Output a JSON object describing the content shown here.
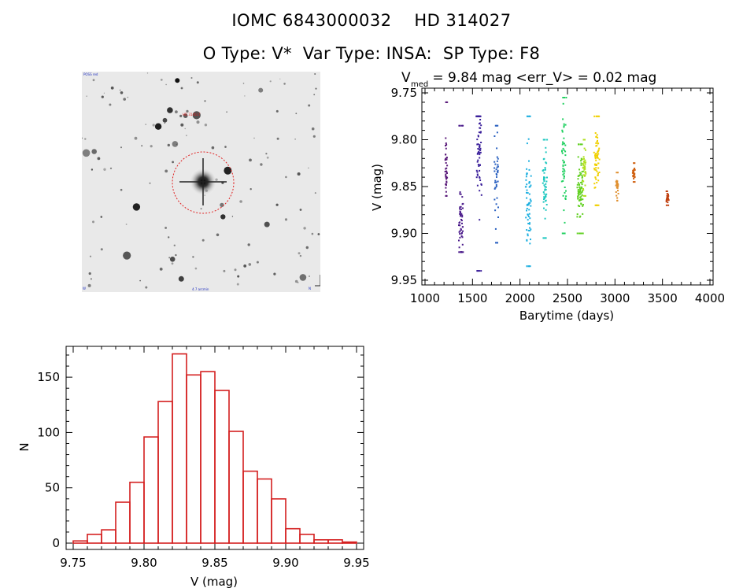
{
  "header": {
    "line1": "IOMC 6843000032    HD 314027",
    "line2": "O Type: V*  Var Type: INSA:  SP Type: F8"
  },
  "colors": {
    "histogram": "#d42020",
    "aperture": "#e02020",
    "lc_palette": [
      "#5a1a7a",
      "#3a1f8a",
      "#2030c0",
      "#2a60c0",
      "#20b0e0",
      "#20c8c0",
      "#20d060",
      "#60d020",
      "#a0e020",
      "#f0d000",
      "#e09030",
      "#d06010",
      "#c04010"
    ]
  },
  "star_image": {
    "label_top_left": "POSS red",
    "label_target": "HD 314027",
    "label_bottom_left": "W",
    "label_bottom_center": "4.7 arcmin",
    "label_bottom_right": "N"
  },
  "chart_data": [
    {
      "type": "scatter",
      "title_prefix": "V",
      "title_sub": "med",
      "title_rest": " = 9.84 mag <err_V> = 0.02 mag",
      "xlabel": "Barytime (days)",
      "ylabel": "V (mag)",
      "xlim": [
        1000,
        4000
      ],
      "ylim": [
        9.95,
        9.75
      ],
      "y_inverted": true,
      "xticks": [
        1000,
        1500,
        2000,
        2500,
        3000,
        3500,
        4000
      ],
      "yticks": [
        "9.75",
        "9.80",
        "9.85",
        "9.90",
        "9.95"
      ],
      "series": [
        {
          "name": "s1",
          "color": "#5a1a7a",
          "x": [
            1210,
            1215,
            1220
          ],
          "ymin": 9.76,
          "ymax": 9.86,
          "center": 9.83
        },
        {
          "name": "s2",
          "color": "#4a1a8a",
          "x": [
            1355,
            1365,
            1375,
            1385
          ],
          "ymin": 9.785,
          "ymax": 9.92,
          "center": 9.89
        },
        {
          "name": "s3",
          "color": "#3a1f9a",
          "x": [
            1540,
            1550,
            1560,
            1570,
            1580
          ],
          "ymin": 9.775,
          "ymax": 9.94,
          "center": 9.81
        },
        {
          "name": "s4",
          "color": "#2a60c0",
          "x": [
            1730,
            1745,
            1755
          ],
          "ymin": 9.785,
          "ymax": 9.91,
          "center": 9.84
        },
        {
          "name": "s5",
          "color": "#20b0e0",
          "x": [
            2060,
            2070,
            2080,
            2090,
            2100
          ],
          "ymin": 9.775,
          "ymax": 9.935,
          "center": 9.865
        },
        {
          "name": "s6",
          "color": "#20c8c0",
          "x": [
            2240,
            2250,
            2260,
            2270
          ],
          "ymin": 9.8,
          "ymax": 9.905,
          "center": 9.845
        },
        {
          "name": "s7",
          "color": "#20d060",
          "x": [
            2440,
            2450,
            2460,
            2470
          ],
          "ymin": 9.755,
          "ymax": 9.9,
          "center": 9.82
        },
        {
          "name": "s8",
          "color": "#60d020",
          "x": [
            2600,
            2610,
            2620,
            2630,
            2640,
            2650
          ],
          "ymin": 9.805,
          "ymax": 9.9,
          "center": 9.85
        },
        {
          "name": "s9",
          "color": "#b0e020",
          "x": [
            2660,
            2670,
            2680
          ],
          "ymin": 9.8,
          "ymax": 9.86,
          "center": 9.83
        },
        {
          "name": "s10",
          "color": "#f0d000",
          "x": [
            2780,
            2790,
            2800,
            2810,
            2820
          ],
          "ymin": 9.775,
          "ymax": 9.87,
          "center": 9.82
        },
        {
          "name": "s11",
          "color": "#e09030",
          "x": [
            3010,
            3020
          ],
          "ymin": 9.835,
          "ymax": 9.865,
          "center": 9.85
        },
        {
          "name": "s12",
          "color": "#d06010",
          "x": [
            3185,
            3195
          ],
          "ymin": 9.825,
          "ymax": 9.845,
          "center": 9.835
        },
        {
          "name": "s13",
          "color": "#c04010",
          "x": [
            3540,
            3550
          ],
          "ymin": 9.855,
          "ymax": 9.87,
          "center": 9.862
        }
      ]
    },
    {
      "type": "bar",
      "subtype": "histogram",
      "xlabel": "V (mag)",
      "ylabel": "N",
      "xlim": [
        9.745,
        9.955
      ],
      "ylim": [
        0,
        175
      ],
      "xticks": [
        "9.75",
        "9.80",
        "9.85",
        "9.90",
        "9.95"
      ],
      "yticks": [
        "0",
        "50",
        "100",
        "150"
      ],
      "bin_width": 0.01,
      "bin_start": 9.755,
      "values": [
        2,
        8,
        12,
        37,
        55,
        96,
        128,
        171,
        152,
        155,
        138,
        101,
        65,
        58,
        40,
        13,
        8,
        3,
        3,
        1
      ]
    }
  ]
}
